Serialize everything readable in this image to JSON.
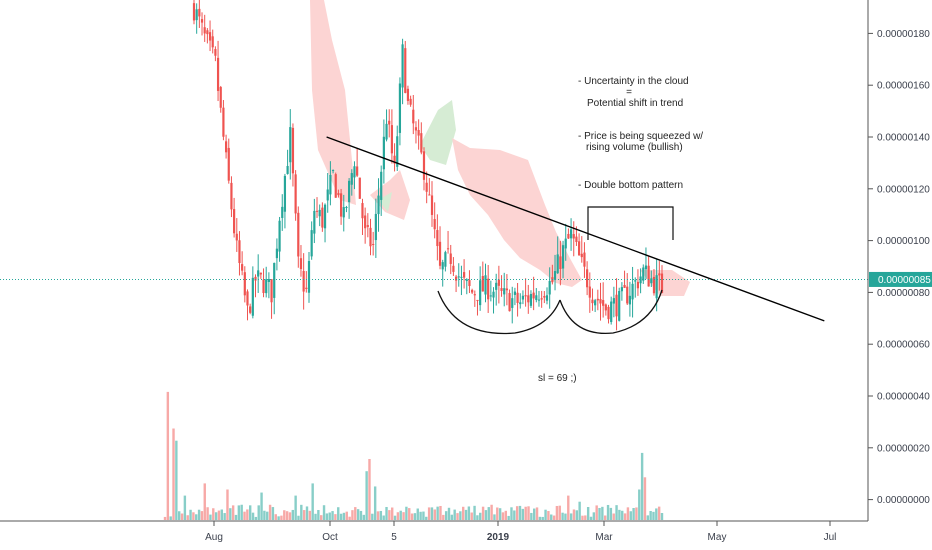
{
  "chart_data": {
    "type": "candlestick",
    "y_axis": {
      "ticks": [
        "0.00000180",
        "0.00000160",
        "0.00000140",
        "0.00000120",
        "0.00000100",
        "0.00000080",
        "0.00000060",
        "0.00000040",
        "0.00000020",
        "0.00000000"
      ],
      "tick_values": [
        180,
        160,
        140,
        120,
        100,
        80,
        60,
        40,
        20,
        0
      ],
      "ylim": [
        -10,
        200
      ],
      "units_note": "x 0.00000001"
    },
    "x_axis": {
      "ticks": [
        {
          "label": "Aug",
          "bold": false
        },
        {
          "label": "Oct",
          "bold": false
        },
        {
          "label": "5",
          "bold": false
        },
        {
          "label": "2019",
          "bold": true
        },
        {
          "label": "Mar",
          "bold": false
        },
        {
          "label": "May",
          "bold": false
        },
        {
          "label": "Jul",
          "bold": false
        }
      ]
    },
    "last_price": {
      "label": "0.00000085",
      "value": 85
    },
    "price_anchors": [
      [
        0,
        190
      ],
      [
        4,
        178
      ],
      [
        8,
        168
      ],
      [
        12,
        130
      ],
      [
        16,
        96
      ],
      [
        20,
        72
      ],
      [
        23,
        85
      ],
      [
        26,
        84
      ],
      [
        29,
        80
      ],
      [
        32,
        110
      ],
      [
        36,
        140
      ],
      [
        39,
        90
      ],
      [
        42,
        80
      ],
      [
        45,
        112
      ],
      [
        48,
        108
      ],
      [
        52,
        125
      ],
      [
        56,
        108
      ],
      [
        60,
        132
      ],
      [
        64,
        102
      ],
      [
        67,
        98
      ],
      [
        70,
        128
      ],
      [
        72,
        148
      ],
      [
        75,
        126
      ],
      [
        78,
        172
      ],
      [
        80,
        152
      ],
      [
        83,
        140
      ],
      [
        86,
        128
      ],
      [
        89,
        108
      ],
      [
        92,
        88
      ],
      [
        96,
        94
      ],
      [
        100,
        84
      ],
      [
        104,
        80
      ],
      [
        110,
        82
      ],
      [
        116,
        78
      ],
      [
        122,
        76
      ],
      [
        128,
        80
      ],
      [
        134,
        84
      ],
      [
        138,
        96
      ],
      [
        141,
        102
      ],
      [
        145,
        90
      ],
      [
        149,
        80
      ],
      [
        154,
        74
      ],
      [
        159,
        76
      ],
      [
        164,
        82
      ],
      [
        168,
        88
      ],
      [
        172,
        84
      ],
      [
        175,
        82
      ]
    ],
    "volume_spikes": [
      [
        1,
        42
      ],
      [
        3,
        30
      ],
      [
        4,
        26
      ],
      [
        7,
        8
      ],
      [
        14,
        12
      ],
      [
        22,
        10
      ],
      [
        34,
        9
      ],
      [
        46,
        8
      ],
      [
        52,
        12
      ],
      [
        71,
        16
      ],
      [
        72,
        20
      ],
      [
        74,
        11
      ],
      [
        115,
        5
      ],
      [
        142,
        8
      ],
      [
        146,
        6
      ],
      [
        167,
        10
      ],
      [
        168,
        22
      ],
      [
        169,
        14
      ]
    ],
    "trendline": [
      {
        "x": "2018-09-12",
        "y": 140
      },
      {
        "x": "2019-06-26",
        "y": 69
      }
    ],
    "cloud": "ichimoku",
    "annotations": [
      "- Uncertainty in the cloud",
      "=",
      "Potential shift in trend",
      "- Price is being squeezed w/",
      "rising volume (bullish)",
      "- Double bottom pattern",
      "sl = 69 ;)"
    ],
    "colors": {
      "up": "#26a69a",
      "down": "#ef5350",
      "cloud_bear": "#fcd4d3",
      "cloud_bull": "#d6ecd4",
      "price_line": "#26a69a",
      "trendline": "#000000"
    }
  }
}
